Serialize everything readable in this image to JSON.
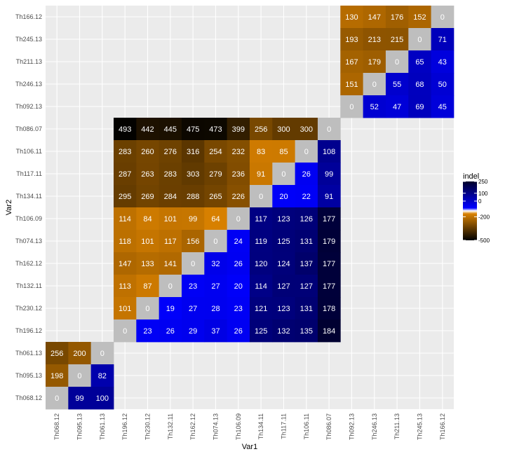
{
  "chart_data": {
    "type": "heatmap",
    "xlabel": "Var1",
    "ylabel": "Var2",
    "x_categories": [
      "Th068.12",
      "Th095.13",
      "Th061.13",
      "Th196.12",
      "Th230.12",
      "Th132.11",
      "Th162.12",
      "Th074.13",
      "Th106.09",
      "Th134.11",
      "Th117.11",
      "Th106.11",
      "Th086.07",
      "Th092.13",
      "Th246.13",
      "Th211.13",
      "Th245.13",
      "Th166.12"
    ],
    "y_categories_top_to_bottom": [
      "Th166.12",
      "Th245.13",
      "Th211.13",
      "Th246.13",
      "Th092.13",
      "Th086.07",
      "Th106.11",
      "Th117.11",
      "Th134.11",
      "Th106.09",
      "Th074.13",
      "Th162.12",
      "Th132.11",
      "Th230.12",
      "Th196.12",
      "Th061.13",
      "Th095.13",
      "Th068.12"
    ],
    "legend": {
      "title": "indel",
      "tick_labels": [
        "250",
        "100",
        "0",
        "-200",
        "-500"
      ],
      "tick_values": [
        250,
        100,
        0,
        -200,
        -500
      ],
      "range": [
        -500,
        250
      ],
      "placement": "right"
    },
    "colors": {
      "panel_background": "#ebebeb",
      "grid": "#ffffff",
      "zero_cell": "#bebebe",
      "low": "#000000",
      "mid_low": "#d98100",
      "mid_high": "#0000ff",
      "high": "#00002a"
    },
    "blocks": [
      {
        "x": [
          "Th092.13",
          "Th246.13",
          "Th211.13",
          "Th245.13",
          "Th166.12"
        ],
        "y": [
          "Th166.12",
          "Th245.13",
          "Th211.13",
          "Th246.13",
          "Th092.13"
        ],
        "values": [
          [
            130,
            147,
            176,
            152,
            0
          ],
          [
            193,
            213,
            215,
            0,
            71
          ],
          [
            167,
            179,
            0,
            65,
            43
          ],
          [
            151,
            0,
            55,
            68,
            50
          ],
          [
            0,
            52,
            47,
            69,
            45
          ]
        ]
      },
      {
        "x": [
          "Th196.12",
          "Th230.12",
          "Th132.11",
          "Th162.12",
          "Th074.13",
          "Th106.09",
          "Th134.11",
          "Th117.11",
          "Th106.11",
          "Th086.07"
        ],
        "y": [
          "Th086.07",
          "Th106.11",
          "Th117.11",
          "Th134.11",
          "Th106.09",
          "Th074.13",
          "Th162.12",
          "Th132.11",
          "Th230.12",
          "Th196.12"
        ],
        "values": [
          [
            493,
            442,
            445,
            475,
            473,
            399,
            256,
            300,
            300,
            0
          ],
          [
            283,
            260,
            276,
            316,
            254,
            232,
            83,
            85,
            0,
            108
          ],
          [
            287,
            263,
            283,
            303,
            279,
            236,
            91,
            0,
            26,
            99
          ],
          [
            295,
            269,
            284,
            288,
            265,
            226,
            0,
            20,
            22,
            91
          ],
          [
            114,
            84,
            101,
            99,
            64,
            0,
            117,
            123,
            126,
            177
          ],
          [
            118,
            101,
            117,
            156,
            0,
            24,
            119,
            125,
            131,
            179
          ],
          [
            147,
            133,
            141,
            0,
            32,
            26,
            120,
            124,
            137,
            177
          ],
          [
            113,
            87,
            0,
            23,
            27,
            20,
            114,
            127,
            127,
            177
          ],
          [
            101,
            0,
            19,
            27,
            28,
            23,
            121,
            123,
            131,
            178
          ],
          [
            0,
            23,
            26,
            29,
            37,
            26,
            125,
            132,
            135,
            184
          ]
        ]
      },
      {
        "x": [
          "Th068.12",
          "Th095.13",
          "Th061.13"
        ],
        "y": [
          "Th061.13",
          "Th095.13",
          "Th068.12"
        ],
        "values": [
          [
            256,
            200,
            0
          ],
          [
            198,
            0,
            82
          ],
          [
            0,
            99,
            100
          ]
        ]
      }
    ]
  }
}
